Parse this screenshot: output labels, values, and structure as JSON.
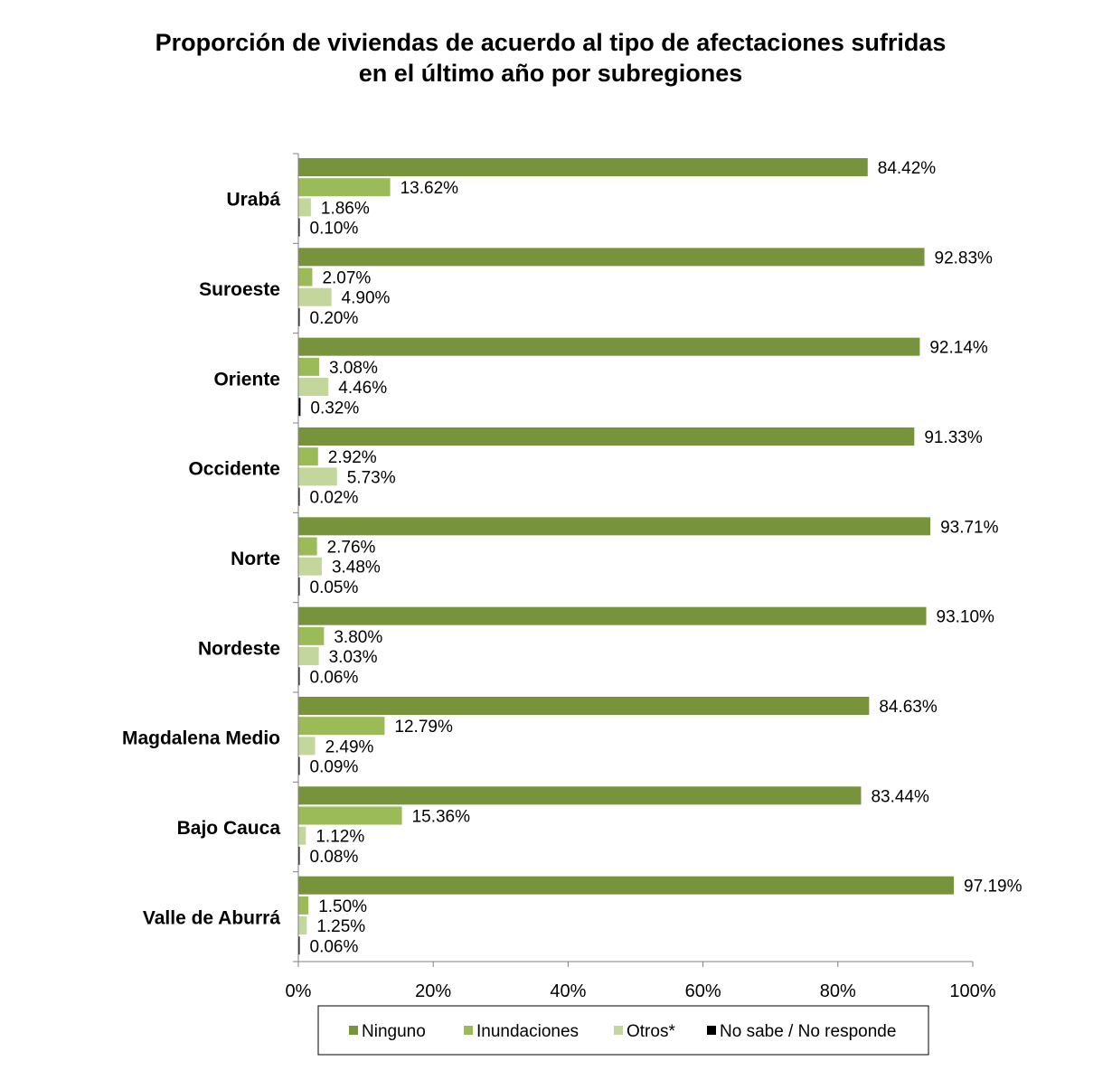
{
  "chart_data": {
    "type": "bar",
    "orientation": "horizontal",
    "title_lines": [
      "Proporción de viviendas de acuerdo al tipo de afectaciones sufridas",
      "en el último año por subregiones"
    ],
    "categories": [
      "Urabá",
      "Suroeste",
      "Oriente",
      "Occidente",
      "Norte",
      "Nordeste",
      "Magdalena Medio",
      "Bajo Cauca",
      "Valle de Aburrá"
    ],
    "series": [
      {
        "name": "Ninguno",
        "color": "#77933c",
        "values": [
          84.42,
          92.83,
          92.14,
          91.33,
          93.71,
          93.1,
          84.63,
          83.44,
          97.19
        ],
        "labels": [
          "84.42%",
          "92.83%",
          "92.14%",
          "91.33%",
          "93.71%",
          "93.10%",
          "84.63%",
          "83.44%",
          "97.19%"
        ]
      },
      {
        "name": "Inundaciones",
        "color": "#9bbb59",
        "values": [
          13.62,
          2.07,
          3.08,
          2.92,
          2.76,
          3.8,
          12.79,
          15.36,
          1.5
        ],
        "labels": [
          "13.62%",
          "2.07%",
          "3.08%",
          "2.92%",
          "2.76%",
          "3.80%",
          "12.79%",
          "15.36%",
          "1.50%"
        ]
      },
      {
        "name": "Otros*",
        "color": "#c3d69b",
        "values": [
          1.86,
          4.9,
          4.46,
          5.73,
          3.48,
          3.03,
          2.49,
          1.12,
          1.25
        ],
        "labels": [
          "1.86%",
          "4.90%",
          "4.46%",
          "5.73%",
          "3.48%",
          "3.03%",
          "2.49%",
          "1.12%",
          "1.25%"
        ]
      },
      {
        "name": "No sabe / No responde",
        "color": "#000000",
        "values": [
          0.1,
          0.2,
          0.32,
          0.02,
          0.05,
          0.06,
          0.09,
          0.08,
          0.06
        ],
        "labels": [
          "0.10%",
          "0.20%",
          "0.32%",
          "0.02%",
          "0.05%",
          "0.06%",
          "0.09%",
          "0.08%",
          "0.06%"
        ]
      }
    ],
    "xlim": [
      0,
      100
    ],
    "xticks": [
      0,
      20,
      40,
      60,
      80,
      100
    ],
    "xtick_labels": [
      "0%",
      "20%",
      "40%",
      "60%",
      "80%",
      "100%"
    ],
    "grid": false,
    "legend_position": "bottom"
  }
}
